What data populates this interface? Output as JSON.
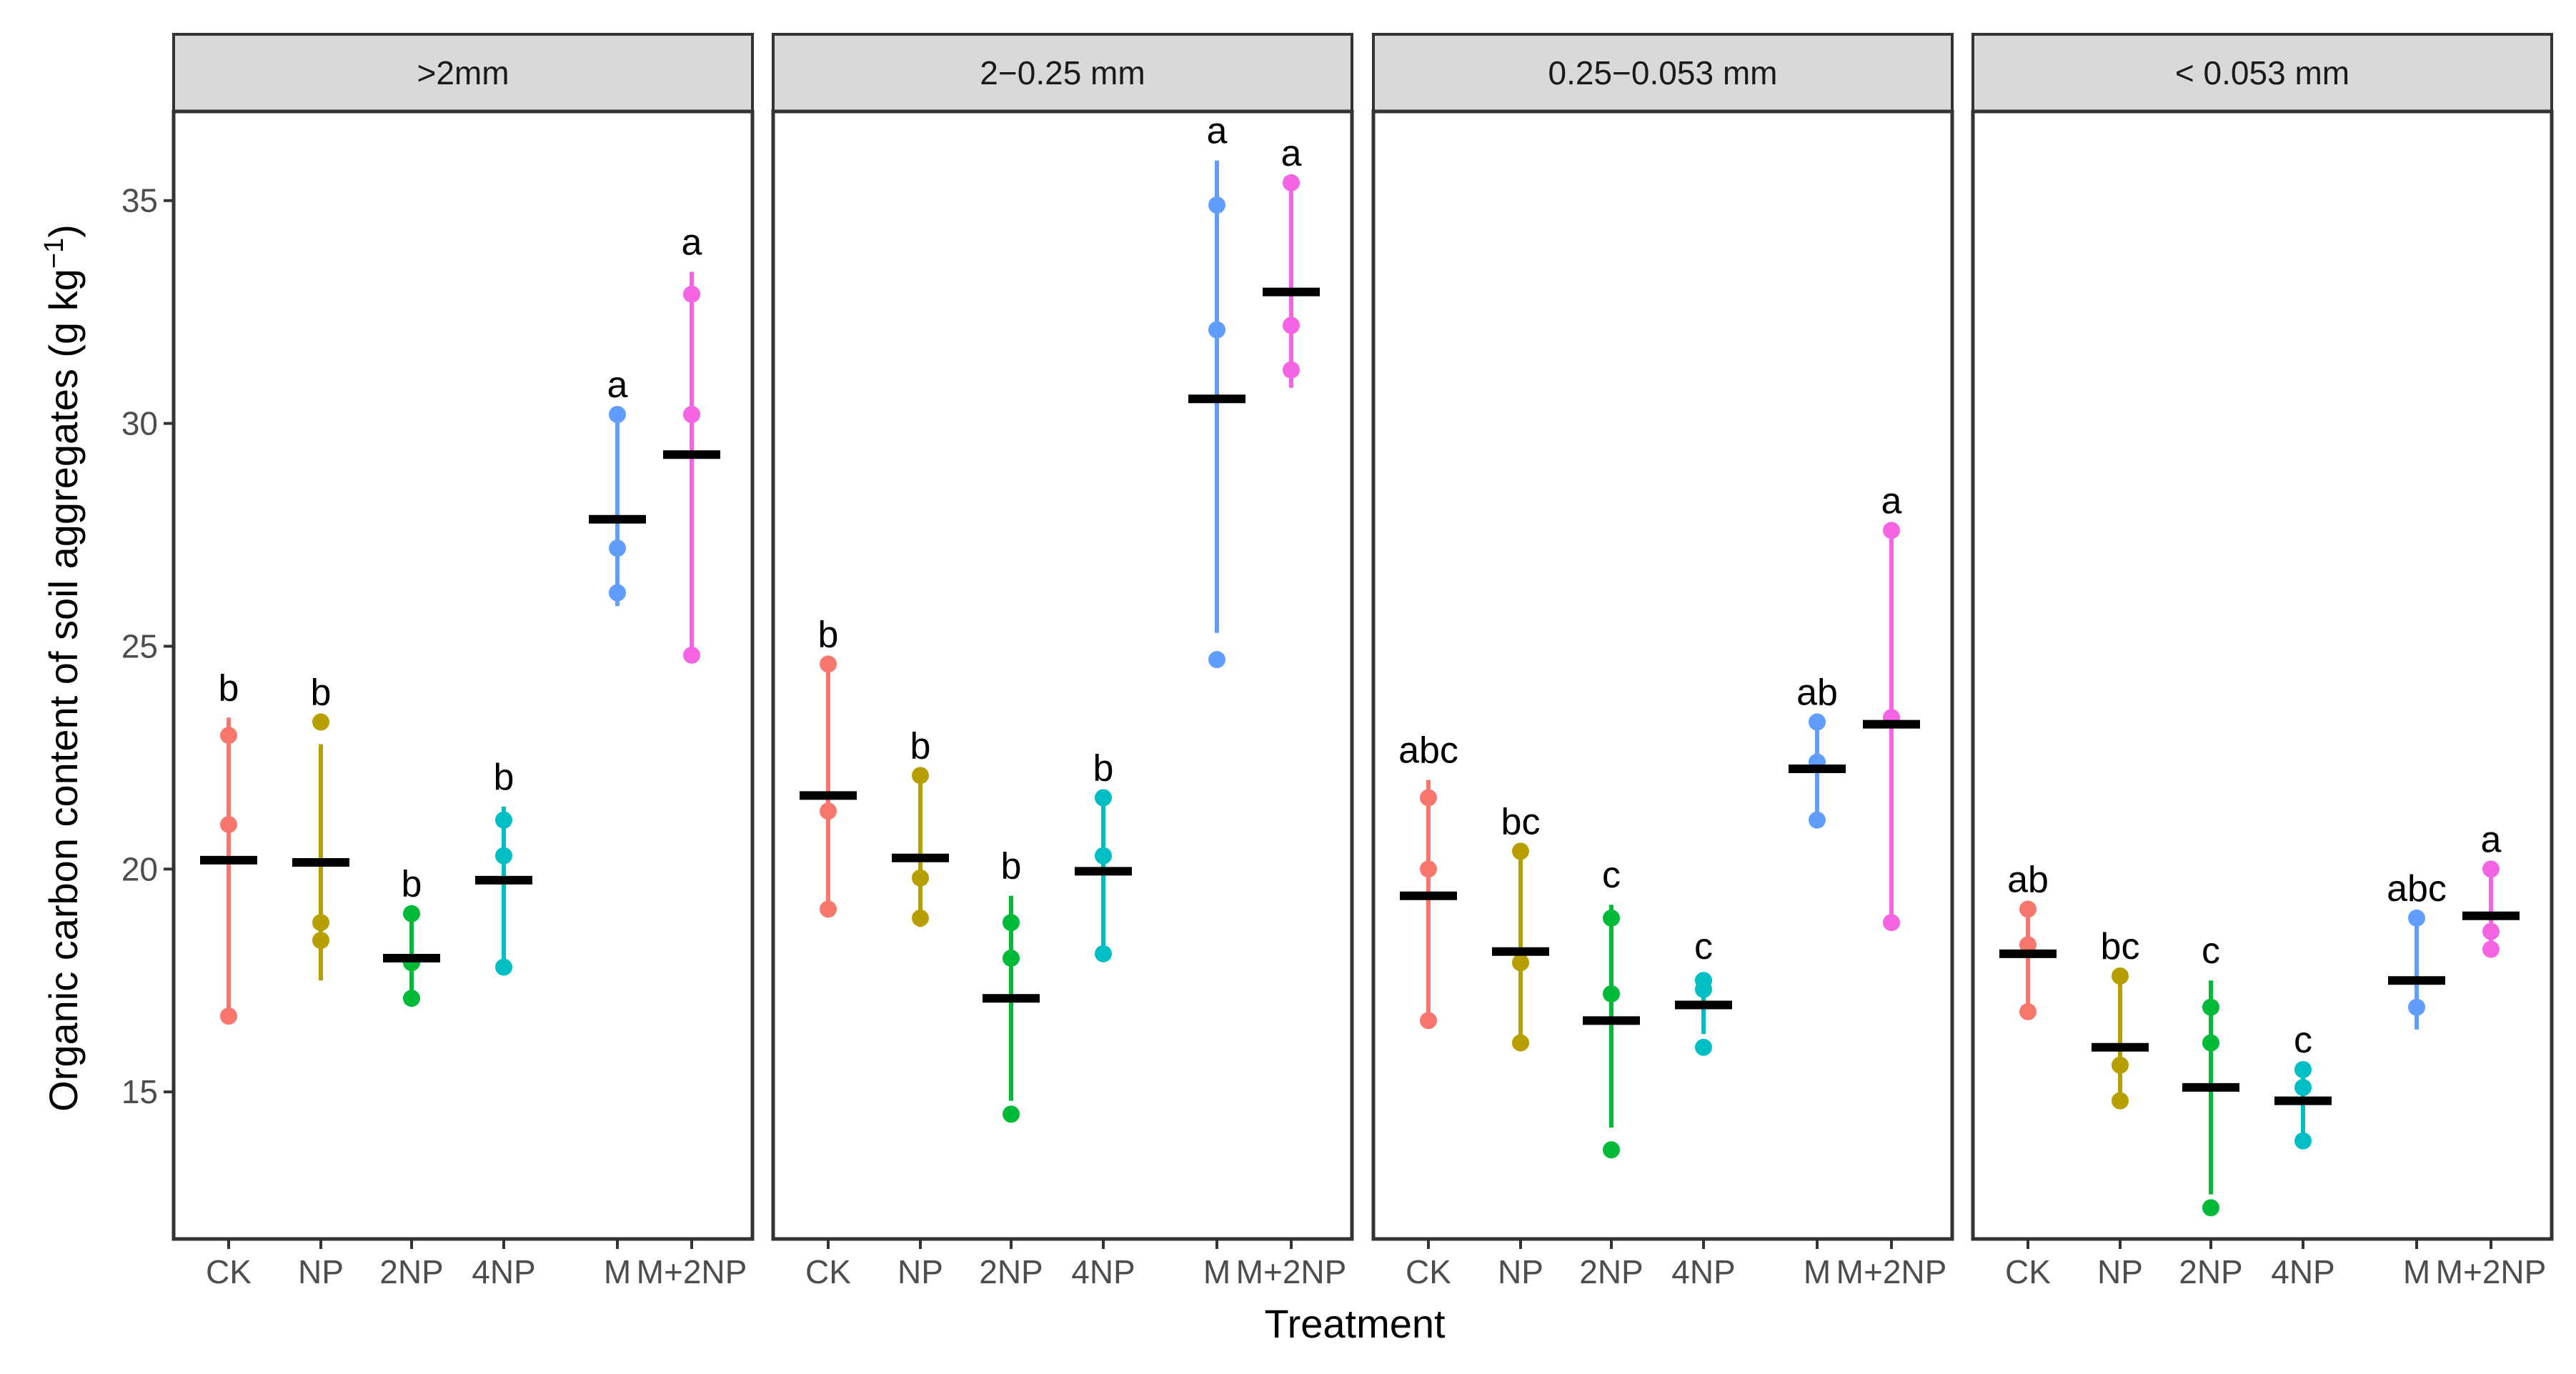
{
  "chart_data": {
    "type": "dot-range",
    "ylabel": "Organic carbon content of soil aggregates (g kg",
    "ylabel_unit_sup": "−1",
    "ylabel_close": ")",
    "xlabel": "Treatment",
    "ylim": [
      11.7,
      37.0
    ],
    "yticks": [
      15,
      20,
      25,
      30,
      35
    ],
    "categories": [
      "CK",
      "NP",
      "2NP",
      "4NP",
      "M",
      "M+2NP"
    ],
    "colors": {
      "CK": "#F8766D",
      "NP": "#B79F00",
      "2NP": "#00BA38",
      "4NP": "#00BFC4",
      "M": "#619CFF",
      "M+2NP": "#F564E3"
    },
    "panels": [
      {
        "title": ">2mm",
        "groups": [
          {
            "treatment": "CK",
            "points": [
              16.7,
              21.0,
              23.0
            ],
            "mean": 20.2,
            "range": [
              16.7,
              23.4
            ],
            "letter": "b"
          },
          {
            "treatment": "NP",
            "points": [
              18.4,
              18.8,
              23.3
            ],
            "mean": 20.15,
            "range": [
              17.5,
              22.8
            ],
            "letter": "b"
          },
          {
            "treatment": "2NP",
            "points": [
              17.1,
              17.9,
              19.0
            ],
            "mean": 18.0,
            "range": [
              17.1,
              19.0
            ],
            "letter": "b"
          },
          {
            "treatment": "4NP",
            "points": [
              17.8,
              20.3,
              21.1
            ],
            "mean": 19.75,
            "range": [
              17.8,
              21.4
            ],
            "letter": "b"
          },
          {
            "treatment": "M",
            "points": [
              26.2,
              27.2,
              30.2
            ],
            "mean": 27.85,
            "range": [
              25.9,
              30.2
            ],
            "letter": "a"
          },
          {
            "treatment": "M+2NP",
            "points": [
              24.8,
              30.2,
              32.9
            ],
            "mean": 29.3,
            "range": [
              24.8,
              33.4
            ],
            "letter": "a"
          }
        ]
      },
      {
        "title": "2−0.25 mm",
        "groups": [
          {
            "treatment": "CK",
            "points": [
              19.1,
              21.3,
              24.6
            ],
            "mean": 21.65,
            "range": [
              19.1,
              24.6
            ],
            "letter": "b"
          },
          {
            "treatment": "NP",
            "points": [
              18.9,
              19.8,
              22.1
            ],
            "mean": 20.25,
            "range": [
              18.7,
              22.1
            ],
            "letter": "b"
          },
          {
            "treatment": "2NP",
            "points": [
              14.5,
              18.0,
              18.8
            ],
            "mean": 17.1,
            "range": [
              14.8,
              19.4
            ],
            "letter": "b"
          },
          {
            "treatment": "4NP",
            "points": [
              18.1,
              20.3,
              21.6
            ],
            "mean": 19.95,
            "range": [
              18.1,
              21.6
            ],
            "letter": "b"
          },
          {
            "treatment": "M",
            "points": [
              24.7,
              32.1,
              34.9
            ],
            "mean": 30.55,
            "range": [
              25.3,
              35.9
            ],
            "letter": "a"
          },
          {
            "treatment": "M+2NP",
            "points": [
              31.2,
              32.2,
              35.4
            ],
            "mean": 32.95,
            "range": [
              30.8,
              35.4
            ],
            "letter": "a"
          }
        ]
      },
      {
        "title": "0.25−0.053 mm",
        "groups": [
          {
            "treatment": "CK",
            "points": [
              16.6,
              20.0,
              21.6
            ],
            "mean": 19.4,
            "range": [
              16.6,
              22.0
            ],
            "letter": "abc"
          },
          {
            "treatment": "NP",
            "points": [
              16.1,
              17.9,
              20.4
            ],
            "mean": 18.15,
            "range": [
              16.1,
              20.4
            ],
            "letter": "bc"
          },
          {
            "treatment": "2NP",
            "points": [
              13.7,
              17.2,
              18.9
            ],
            "mean": 16.6,
            "range": [
              14.2,
              19.2
            ],
            "letter": "c"
          },
          {
            "treatment": "4NP",
            "points": [
              16.0,
              17.3,
              17.5
            ],
            "mean": 16.95,
            "range": [
              16.3,
              17.6
            ],
            "letter": "c"
          },
          {
            "treatment": "M",
            "points": [
              21.1,
              22.4,
              23.3
            ],
            "mean": 22.25,
            "range": [
              21.1,
              23.3
            ],
            "letter": "ab"
          },
          {
            "treatment": "M+2NP",
            "points": [
              18.8,
              23.4,
              27.6
            ],
            "mean": 23.25,
            "range": [
              18.8,
              27.6
            ],
            "letter": "a"
          }
        ]
      },
      {
        "title": "< 0.053 mm",
        "groups": [
          {
            "treatment": "CK",
            "points": [
              16.8,
              18.3,
              19.1
            ],
            "mean": 18.1,
            "range": [
              16.8,
              19.1
            ],
            "letter": "ab"
          },
          {
            "treatment": "NP",
            "points": [
              14.8,
              15.6,
              17.6
            ],
            "mean": 16.0,
            "range": [
              14.8,
              17.6
            ],
            "letter": "bc"
          },
          {
            "treatment": "2NP",
            "points": [
              12.4,
              16.1,
              16.9
            ],
            "mean": 15.1,
            "range": [
              12.7,
              17.5
            ],
            "letter": "c"
          },
          {
            "treatment": "4NP",
            "points": [
              13.9,
              15.1,
              15.5
            ],
            "mean": 14.8,
            "range": [
              13.9,
              15.5
            ],
            "letter": "c"
          },
          {
            "treatment": "M",
            "points": [
              16.9,
              18.9
            ],
            "mean": 17.5,
            "range": [
              16.4,
              18.9
            ],
            "letter": "abc"
          },
          {
            "treatment": "M+2NP",
            "points": [
              18.2,
              18.6,
              20.0
            ],
            "mean": 18.95,
            "range": [
              18.2,
              20.0
            ],
            "letter": "a"
          }
        ]
      }
    ]
  }
}
